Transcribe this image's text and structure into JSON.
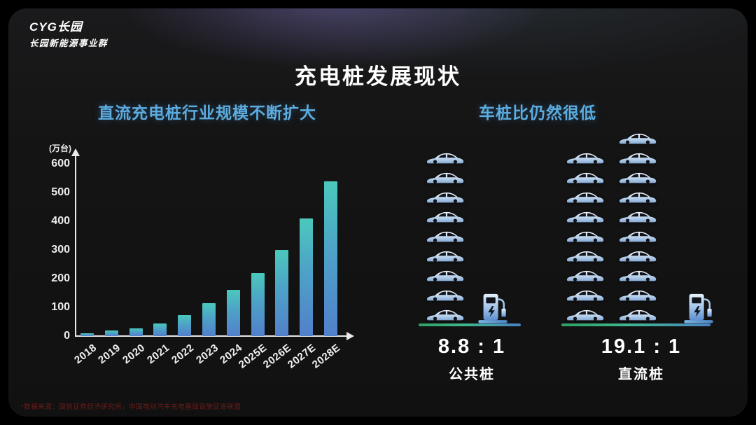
{
  "logo": {
    "line1": "CYG长园",
    "line2": "长园新能源事业群"
  },
  "title": "充电桩发展现状",
  "left_section": {
    "title": "直流充电桩行业规模不断扩大"
  },
  "chart_data": {
    "type": "bar",
    "title": "直流充电桩行业规模不断扩大",
    "unit_label": "(万台)",
    "ylabel": "万台",
    "xlabel": "",
    "categories": [
      "2018",
      "2019",
      "2020",
      "2021",
      "2022",
      "2023",
      "2024",
      "2025E",
      "2026E",
      "2027E",
      "2028E"
    ],
    "values": [
      10,
      20,
      28,
      45,
      72,
      115,
      160,
      220,
      300,
      410,
      540
    ],
    "yticks": [
      0,
      100,
      200,
      300,
      400,
      500,
      600
    ],
    "ylim": [
      0,
      600
    ],
    "grid": false,
    "legend": "none",
    "bar_color_top": "#4bc8bc",
    "bar_color_bottom": "#5280cb"
  },
  "right_section": {
    "title": "车桩比仍然很低",
    "groups": [
      {
        "ratio": "8.8 : 1",
        "label": "公共桩",
        "car_columns": [
          9
        ],
        "total_cars": 9,
        "chargers": 1
      },
      {
        "ratio": "19.1 : 1",
        "label": "直流桩",
        "car_columns": [
          9,
          10
        ],
        "total_cars": 19,
        "chargers": 1
      }
    ]
  },
  "footnote": "*数据来源：国信证券经济研究所，中国电动汽车充电基础设施促进联盟",
  "colors": {
    "background": "#111111",
    "accent_blue": "#5cacdf",
    "bar_gradient": [
      "#4bc8bc",
      "#5280cb"
    ],
    "baseline_gradient": [
      "#2ea163",
      "#4b82c2"
    ],
    "footnote": "#6e1b1b",
    "glow_purple": "#8070c4"
  }
}
